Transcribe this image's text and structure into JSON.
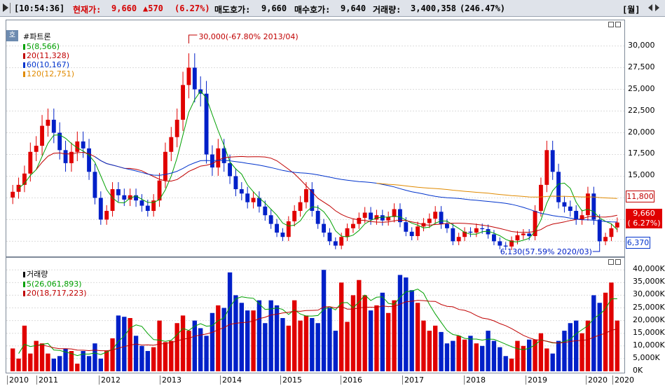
{
  "topbar": {
    "time": "[10:54:36]",
    "price_label": "현재가:",
    "price": "9,660",
    "change": "▲570",
    "change_pct": "(6.27%)",
    "ask_label": "매도호가:",
    "ask": "9,660",
    "bid_label": "매수호가:",
    "bid": "9,640",
    "volume_label": "거래량:",
    "volume": "3,400,358",
    "volume_pct": "(246.47%)",
    "period": "[월]"
  },
  "price_pane": {
    "badge": "호",
    "legend": [
      {
        "text": "#파트론",
        "color": "#000000"
      },
      {
        "text": "5(8,566)",
        "color": "#00a000"
      },
      {
        "text": "20(11,328)",
        "color": "#c00000"
      },
      {
        "text": "60(10,167)",
        "color": "#0033cc"
      },
      {
        "text": "120(12,751)",
        "color": "#e08a00"
      }
    ],
    "annotations": {
      "high": "30,000(-67.80% 2013/04)",
      "low": "6,130(57.59% 2020/03)"
    },
    "yticks": [
      "30,000",
      "27,500",
      "25,000",
      "22,500",
      "20,000",
      "17,500",
      "15,000",
      "12,500",
      "10,000",
      "7,500"
    ],
    "boxes": {
      "high_box": "11,800",
      "current": "9,660",
      "current_pct": "( 6.27%)",
      "low_box": "6,370"
    }
  },
  "volume_pane": {
    "legend": [
      {
        "text": "거래량",
        "color": "#000000"
      },
      {
        "text": "5(26,061,893)",
        "color": "#00a000"
      },
      {
        "text": "20(18,717,223)",
        "color": "#c00000"
      }
    ],
    "yticks": [
      "40,000K",
      "35,000K",
      "30,000K",
      "25,000K",
      "20,000K",
      "15,000K",
      "10,000K",
      "5,000K",
      "0K"
    ]
  },
  "xaxis": [
    "2010",
    "2011",
    "2012",
    "2013",
    "2014",
    "2015",
    "2016",
    "2017",
    "2018",
    "2019",
    "2020",
    "2020"
  ],
  "chart_data": [
    {
      "type": "candlestick",
      "title": "#파트론",
      "period": "monthly",
      "ylim": [
        6000,
        31500
      ],
      "series_ma": [
        {
          "name": "5",
          "last": 8566,
          "color": "#00a000"
        },
        {
          "name": "20",
          "last": 11328,
          "color": "#c00000"
        },
        {
          "name": "60",
          "last": 10167,
          "color": "#0033cc"
        },
        {
          "name": "120",
          "last": 12751,
          "color": "#e08a00"
        }
      ],
      "close": [
        13200,
        14000,
        15300,
        17800,
        18500,
        20800,
        21500,
        20000,
        18000,
        16500,
        17800,
        19000,
        18200,
        15500,
        12500,
        10000,
        11000,
        13500,
        12800,
        12300,
        12800,
        12200,
        11600,
        11000,
        12200,
        14500,
        17800,
        19500,
        21500,
        25500,
        27500,
        25000,
        24500,
        17500,
        16000,
        18200,
        16500,
        15000,
        13500,
        13000,
        12000,
        12500,
        11500,
        10500,
        9500,
        8500,
        8000,
        9800,
        11000,
        12000,
        13500,
        11000,
        9500,
        8500,
        7500,
        7000,
        8000,
        9000,
        9500,
        10200,
        10800,
        10000,
        10500,
        9900,
        10300,
        11200,
        9700,
        8600,
        8100,
        9200,
        9600,
        10100,
        10900,
        9500,
        9000,
        7500,
        8000,
        8600,
        8500,
        9000,
        8900,
        8300,
        7500,
        7000,
        6900,
        7600,
        8200,
        8400,
        8100,
        11000,
        14000,
        18000,
        15500,
        12000,
        11500,
        11000,
        10000,
        10500,
        13000,
        10000,
        7500,
        8000,
        9000,
        9660
      ],
      "ylabel": ""
    },
    {
      "type": "bar",
      "title": "거래량",
      "unit": "K shares",
      "ylim": [
        0,
        42000
      ],
      "values": [
        9000,
        5000,
        18000,
        7000,
        12000,
        11000,
        7000,
        5000,
        6000,
        9000,
        8000,
        3000,
        8000,
        6000,
        11000,
        5000,
        8000,
        13000,
        22000,
        21500,
        21000,
        14000,
        10000,
        8000,
        9500,
        20000,
        11500,
        12000,
        19000,
        22000,
        16000,
        20000,
        17000,
        14000,
        23000,
        26000,
        25000,
        39000,
        30000,
        27000,
        24000,
        24000,
        28000,
        19000,
        28000,
        26000,
        21000,
        18000,
        28000,
        20000,
        22000,
        21000,
        19000,
        40000,
        25000,
        16000,
        35000,
        19500,
        30000,
        36000,
        30000,
        24000,
        26000,
        31000,
        23000,
        28000,
        38000,
        37000,
        32000,
        27000,
        20000,
        16000,
        18000,
        15500,
        11000,
        12000,
        14000,
        12500,
        14000,
        11000,
        10000,
        16000,
        12000,
        9500,
        6000,
        5000,
        12000,
        10000,
        12500,
        12500,
        15000,
        9000,
        7000,
        12000,
        16000,
        19000,
        20000,
        15000,
        20000,
        30000,
        27000,
        31000,
        35000,
        20000
      ],
      "series_ma": [
        {
          "name": "5",
          "last": 26061893,
          "color": "#00a000"
        },
        {
          "name": "20",
          "last": 18717223,
          "color": "#c00000"
        }
      ]
    }
  ]
}
